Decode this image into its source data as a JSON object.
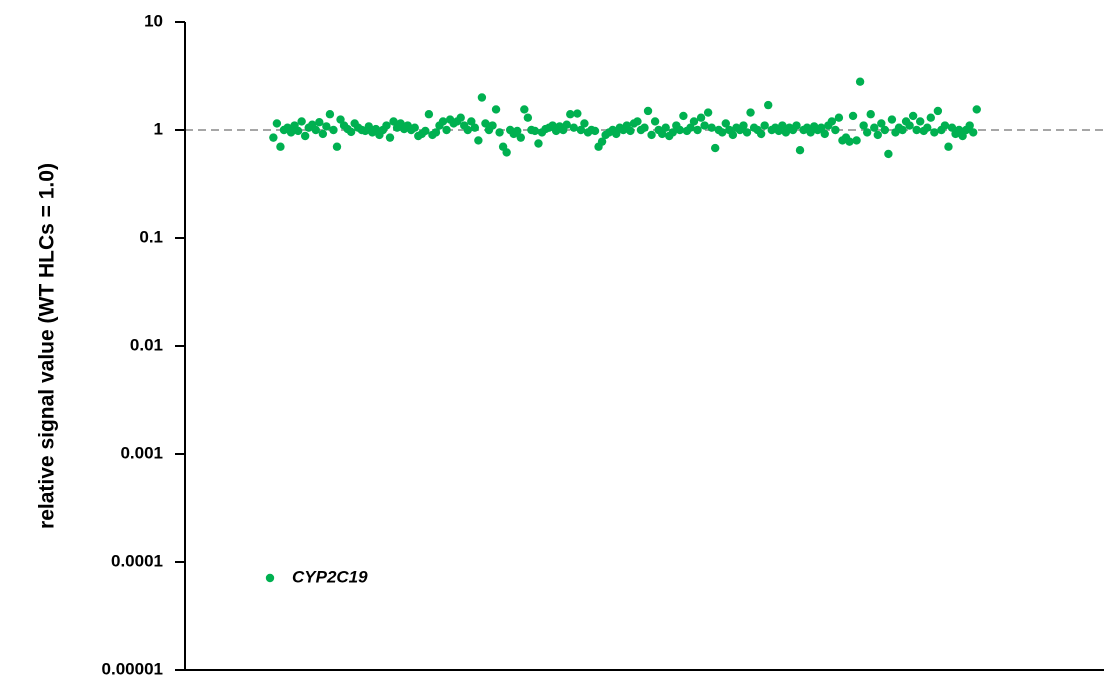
{
  "chart_data": {
    "type": "scatter",
    "y_label": "relative signal value (WT HLCs = 1.0)",
    "log_y": true,
    "ylim": [
      1e-05,
      10
    ],
    "yticks": [
      10,
      1,
      0.1,
      0.01,
      0.001,
      0.0001,
      1e-05
    ],
    "xlim": [
      -24,
      236
    ],
    "hline": 1,
    "legend": "lower left",
    "x": [
      1,
      2,
      3,
      4,
      5,
      6,
      7,
      8,
      9,
      10,
      11,
      12,
      13,
      14,
      15,
      16,
      17,
      18,
      19,
      20,
      21,
      22,
      23,
      24,
      25,
      26,
      27,
      28,
      29,
      30,
      31,
      32,
      33,
      34,
      35,
      36,
      37,
      38,
      39,
      40,
      41,
      42,
      43,
      44,
      45,
      46,
      47,
      48,
      49,
      50,
      51,
      52,
      53,
      54,
      55,
      56,
      57,
      58,
      59,
      60,
      61,
      62,
      63,
      64,
      65,
      66,
      67,
      68,
      69,
      70,
      71,
      72,
      73,
      74,
      75,
      76,
      77,
      78,
      79,
      80,
      81,
      82,
      83,
      84,
      85,
      86,
      87,
      88,
      89,
      90,
      91,
      92,
      93,
      94,
      95,
      96,
      97,
      98,
      99,
      100,
      101,
      102,
      103,
      104,
      105,
      106,
      107,
      108,
      109,
      110,
      111,
      112,
      113,
      114,
      115,
      116,
      117,
      118,
      119,
      120,
      121,
      122,
      123,
      124,
      125,
      126,
      127,
      128,
      129,
      130,
      131,
      132,
      133,
      134,
      135,
      136,
      137,
      138,
      139,
      140,
      141,
      142,
      143,
      144,
      145,
      146,
      147,
      148,
      149,
      150,
      151,
      152,
      153,
      154,
      155,
      156,
      157,
      158,
      159,
      160,
      161,
      162,
      163,
      164,
      165,
      166,
      167,
      168,
      169,
      170,
      171,
      172,
      173,
      174,
      175,
      176,
      177,
      178,
      179,
      180,
      181,
      182,
      183,
      184,
      185,
      186,
      187,
      188,
      189,
      190,
      191,
      192,
      193,
      194,
      195,
      196,
      197,
      198,
      199,
      200
    ],
    "series": [
      {
        "name": "CYP2C19",
        "color": "#00b050",
        "values": [
          0.85,
          1.15,
          0.7,
          1.0,
          1.05,
          0.95,
          1.1,
          0.98,
          1.2,
          0.88,
          1.05,
          1.12,
          1.0,
          1.18,
          0.92,
          1.08,
          1.4,
          1.0,
          0.7,
          1.25,
          1.1,
          1.02,
          0.96,
          1.15,
          1.05,
          1.0,
          0.98,
          1.08,
          0.95,
          1.02,
          0.9,
          1.0,
          1.1,
          0.85,
          1.2,
          1.05,
          1.15,
          1.02,
          1.1,
          1.0,
          1.05,
          0.88,
          0.92,
          0.98,
          1.4,
          0.9,
          0.95,
          1.1,
          1.2,
          1.0,
          1.25,
          1.15,
          1.2,
          1.3,
          1.1,
          1.0,
          1.2,
          1.05,
          0.8,
          2.0,
          1.15,
          1.0,
          1.1,
          1.55,
          0.95,
          0.7,
          0.62,
          1.0,
          0.92,
          0.98,
          0.85,
          1.55,
          1.3,
          1.0,
          0.98,
          0.75,
          0.95,
          1.02,
          1.05,
          1.1,
          0.98,
          1.08,
          1.0,
          1.12,
          1.4,
          1.05,
          1.42,
          1.0,
          1.15,
          0.95,
          1.0,
          0.98,
          0.7,
          0.78,
          0.9,
          0.95,
          1.0,
          0.92,
          1.05,
          1.0,
          1.1,
          0.98,
          1.15,
          1.2,
          1.0,
          1.05,
          1.5,
          0.9,
          1.2,
          1.0,
          0.92,
          1.05,
          0.88,
          0.95,
          1.1,
          1.0,
          1.35,
          0.98,
          1.05,
          1.2,
          1.0,
          1.3,
          1.1,
          1.45,
          1.05,
          0.68,
          1.0,
          0.95,
          1.15,
          1.0,
          0.9,
          1.05,
          1.0,
          1.1,
          0.95,
          1.45,
          1.05,
          1.0,
          0.92,
          1.1,
          1.7,
          1.0,
          1.05,
          0.98,
          1.1,
          0.95,
          1.05,
          1.0,
          1.1,
          0.65,
          1.0,
          1.05,
          0.95,
          1.08,
          1.0,
          1.05,
          0.92,
          1.1,
          1.2,
          1.0,
          1.3,
          0.8,
          0.85,
          0.78,
          1.35,
          0.8,
          2.8,
          1.1,
          0.95,
          1.4,
          1.05,
          0.9,
          1.15,
          1.0,
          0.6,
          1.25,
          0.95,
          1.05,
          1.0,
          1.2,
          1.1,
          1.35,
          1.0,
          1.2,
          0.98,
          1.05,
          1.3,
          0.95,
          1.5,
          1.0,
          1.1,
          0.7,
          1.05,
          0.92,
          1.0,
          0.88,
          1.0,
          1.1,
          0.95,
          1.55
        ]
      }
    ]
  }
}
